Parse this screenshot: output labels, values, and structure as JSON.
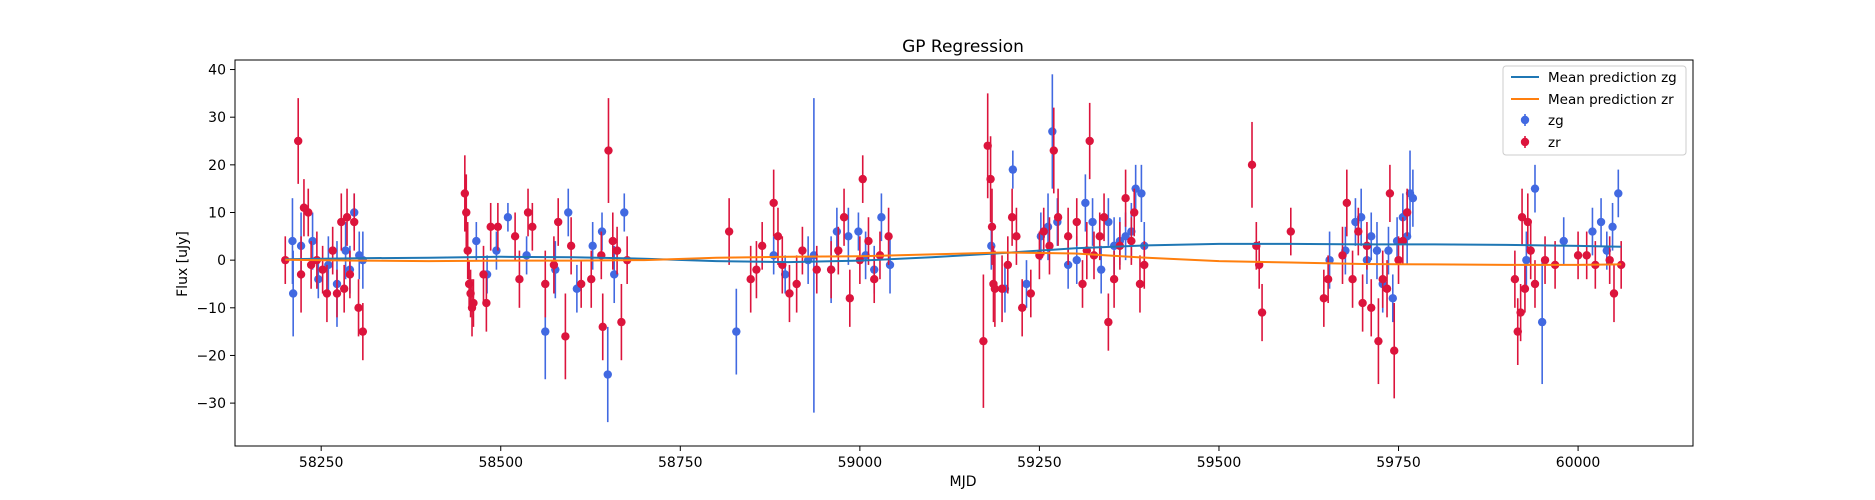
{
  "chart_data": {
    "type": "scatter",
    "title": "GP Regression",
    "xlabel": "MJD",
    "ylabel": "Flux [uJy]",
    "xlim": [
      58130,
      60160
    ],
    "ylim": [
      -39,
      42
    ],
    "xticks": [
      58250,
      58500,
      58750,
      59000,
      59250,
      59500,
      59750,
      60000
    ],
    "yticks": [
      -30,
      -20,
      -10,
      0,
      10,
      20,
      30,
      40
    ],
    "grid": false,
    "legend_position": "top-right",
    "lines": [
      {
        "name": "Mean prediction zg",
        "color": "#1f77b4",
        "points": [
          [
            58200,
            0.2
          ],
          [
            58300,
            0.4
          ],
          [
            58400,
            0.5
          ],
          [
            58500,
            0.7
          ],
          [
            58600,
            0.6
          ],
          [
            58700,
            0.3
          ],
          [
            58800,
            -0.2
          ],
          [
            58900,
            -0.4
          ],
          [
            59000,
            -0.1
          ],
          [
            59100,
            0.6
          ],
          [
            59200,
            1.5
          ],
          [
            59300,
            2.5
          ],
          [
            59400,
            3.1
          ],
          [
            59500,
            3.4
          ],
          [
            59600,
            3.4
          ],
          [
            59700,
            3.3
          ],
          [
            59800,
            3.3
          ],
          [
            59900,
            3.2
          ],
          [
            60000,
            3.0
          ],
          [
            60060,
            2.8
          ]
        ]
      },
      {
        "name": "Mean prediction zr",
        "color": "#ff7f0e",
        "points": [
          [
            58200,
            0.1
          ],
          [
            58300,
            -0.1
          ],
          [
            58400,
            -0.2
          ],
          [
            58500,
            -0.1
          ],
          [
            58600,
            -0.1
          ],
          [
            58700,
            0.0
          ],
          [
            58800,
            0.5
          ],
          [
            58900,
            0.7
          ],
          [
            59000,
            0.8
          ],
          [
            59100,
            1.2
          ],
          [
            59200,
            1.6
          ],
          [
            59300,
            1.4
          ],
          [
            59400,
            0.5
          ],
          [
            59500,
            -0.2
          ],
          [
            59600,
            -0.5
          ],
          [
            59700,
            -0.8
          ],
          [
            59800,
            -0.9
          ],
          [
            59900,
            -1.0
          ],
          [
            60000,
            -1.0
          ],
          [
            60060,
            -0.9
          ]
        ]
      }
    ],
    "series": [
      {
        "name": "zg",
        "color": "#4169e1",
        "points": [
          [
            58210,
            4,
            9
          ],
          [
            58211,
            -7,
            9
          ],
          [
            58222,
            3,
            7
          ],
          [
            58238,
            4,
            6
          ],
          [
            58246,
            -4,
            4
          ],
          [
            58260,
            -1,
            6
          ],
          [
            58272,
            -5,
            9
          ],
          [
            58284,
            2,
            6
          ],
          [
            58290,
            -2,
            5
          ],
          [
            58296,
            10,
            4
          ],
          [
            58303,
            1,
            5
          ],
          [
            58308,
            0,
            6
          ],
          [
            58466,
            4,
            4
          ],
          [
            58481,
            -3,
            4
          ],
          [
            58494,
            2,
            4
          ],
          [
            58510,
            9,
            3
          ],
          [
            58536,
            1,
            4
          ],
          [
            58562,
            -15,
            10
          ],
          [
            58576,
            -2,
            6
          ],
          [
            58594,
            10,
            5
          ],
          [
            58606,
            -6,
            5
          ],
          [
            58628,
            3,
            5
          ],
          [
            58641,
            6,
            4
          ],
          [
            58649,
            -24,
            10
          ],
          [
            58658,
            -3,
            6
          ],
          [
            58672,
            10,
            4
          ],
          [
            58828,
            -15,
            9
          ],
          [
            58880,
            1,
            4
          ],
          [
            58896,
            -3,
            4
          ],
          [
            58928,
            0,
            5
          ],
          [
            58936,
            1,
            33
          ],
          [
            58960,
            -2,
            7
          ],
          [
            58968,
            6,
            5
          ],
          [
            58984,
            5,
            6
          ],
          [
            58998,
            6,
            4
          ],
          [
            59008,
            1,
            5
          ],
          [
            59020,
            -2,
            5
          ],
          [
            59030,
            9,
            5
          ],
          [
            59042,
            -1,
            6
          ],
          [
            59183,
            3,
            5
          ],
          [
            59202,
            -6,
            5
          ],
          [
            59213,
            19,
            4
          ],
          [
            59232,
            -5,
            5
          ],
          [
            59252,
            5,
            5
          ],
          [
            59262,
            7,
            7
          ],
          [
            59268,
            27,
            12
          ],
          [
            59275,
            8,
            5
          ],
          [
            59290,
            -1,
            5
          ],
          [
            59302,
            0,
            5
          ],
          [
            59314,
            12,
            6
          ],
          [
            59324,
            8,
            5
          ],
          [
            59336,
            -2,
            5
          ],
          [
            59346,
            8,
            5
          ],
          [
            59354,
            3,
            6
          ],
          [
            59362,
            4,
            5
          ],
          [
            59370,
            5,
            5
          ],
          [
            59378,
            6,
            6
          ],
          [
            59384,
            15,
            5
          ],
          [
            59392,
            14,
            6
          ],
          [
            59396,
            3,
            5
          ],
          [
            59654,
            0,
            6
          ],
          [
            59676,
            2,
            5
          ],
          [
            59690,
            8,
            5
          ],
          [
            59698,
            9,
            6
          ],
          [
            59706,
            0,
            5
          ],
          [
            59712,
            5,
            5
          ],
          [
            59720,
            2,
            6
          ],
          [
            59728,
            -5,
            6
          ],
          [
            59736,
            2,
            5
          ],
          [
            59742,
            -8,
            5
          ],
          [
            59748,
            4,
            5
          ],
          [
            59756,
            9,
            5
          ],
          [
            59762,
            5,
            6
          ],
          [
            59766,
            14,
            9
          ],
          [
            59770,
            13,
            6
          ],
          [
            59928,
            0,
            6
          ],
          [
            59940,
            15,
            5
          ],
          [
            59950,
            -13,
            13
          ],
          [
            59980,
            4,
            5
          ],
          [
            60020,
            6,
            5
          ],
          [
            60032,
            8,
            5
          ],
          [
            60040,
            2,
            4
          ],
          [
            60048,
            7,
            5
          ],
          [
            60056,
            14,
            5
          ]
        ]
      },
      {
        "name": "zr",
        "color": "#dc143c",
        "points": [
          [
            58200,
            0,
            5
          ],
          [
            58218,
            25,
            9
          ],
          [
            58222,
            -3,
            8
          ],
          [
            58226,
            11,
            6
          ],
          [
            58232,
            10,
            5
          ],
          [
            58236,
            -1,
            5
          ],
          [
            58244,
            0,
            6
          ],
          [
            58252,
            -2,
            5
          ],
          [
            58258,
            -7,
            6
          ],
          [
            58266,
            2,
            5
          ],
          [
            58272,
            -7,
            5
          ],
          [
            58278,
            8,
            6
          ],
          [
            58282,
            -6,
            5
          ],
          [
            58286,
            9,
            6
          ],
          [
            58290,
            -3,
            5
          ],
          [
            58296,
            8,
            6
          ],
          [
            58302,
            -10,
            6
          ],
          [
            58308,
            -15,
            6
          ],
          [
            58450,
            14,
            8
          ],
          [
            58452,
            10,
            8
          ],
          [
            58454,
            2,
            6
          ],
          [
            58456,
            -5,
            5
          ],
          [
            58458,
            -7,
            5
          ],
          [
            58460,
            -10,
            6
          ],
          [
            58462,
            -9,
            5
          ],
          [
            58476,
            -3,
            6
          ],
          [
            58480,
            -9,
            6
          ],
          [
            58486,
            7,
            5
          ],
          [
            58496,
            7,
            5
          ],
          [
            58520,
            5,
            5
          ],
          [
            58526,
            -4,
            6
          ],
          [
            58538,
            10,
            5
          ],
          [
            58544,
            7,
            5
          ],
          [
            58562,
            -5,
            7
          ],
          [
            58574,
            -1,
            6
          ],
          [
            58580,
            8,
            5
          ],
          [
            58590,
            -16,
            9
          ],
          [
            58598,
            3,
            6
          ],
          [
            58612,
            -5,
            5
          ],
          [
            58626,
            -4,
            6
          ],
          [
            58640,
            1,
            5
          ],
          [
            58642,
            -14,
            7
          ],
          [
            58650,
            23,
            11
          ],
          [
            58656,
            4,
            6
          ],
          [
            58662,
            2,
            5
          ],
          [
            58668,
            -13,
            8
          ],
          [
            58676,
            0,
            5
          ],
          [
            58818,
            6,
            7
          ],
          [
            58848,
            -4,
            7
          ],
          [
            58856,
            -2,
            6
          ],
          [
            58864,
            3,
            5
          ],
          [
            58880,
            12,
            7
          ],
          [
            58886,
            5,
            6
          ],
          [
            58892,
            -1,
            6
          ],
          [
            58902,
            -7,
            6
          ],
          [
            58912,
            -5,
            6
          ],
          [
            58920,
            2,
            5
          ],
          [
            58940,
            -2,
            5
          ],
          [
            58960,
            -2,
            6
          ],
          [
            58970,
            2,
            5
          ],
          [
            58978,
            9,
            6
          ],
          [
            58986,
            -8,
            6
          ],
          [
            59000,
            0,
            5
          ],
          [
            59004,
            17,
            5
          ],
          [
            59012,
            4,
            5
          ],
          [
            59020,
            -4,
            5
          ],
          [
            59028,
            1,
            5
          ],
          [
            59040,
            5,
            6
          ],
          [
            59172,
            -17,
            14
          ],
          [
            59178,
            24,
            11
          ],
          [
            59182,
            17,
            9
          ],
          [
            59184,
            7,
            8
          ],
          [
            59186,
            -5,
            8
          ],
          [
            59188,
            -6,
            8
          ],
          [
            59198,
            -6,
            7
          ],
          [
            59206,
            -1,
            6
          ],
          [
            59212,
            9,
            6
          ],
          [
            59218,
            5,
            6
          ],
          [
            59226,
            -10,
            6
          ],
          [
            59238,
            -7,
            5
          ],
          [
            59250,
            1,
            5
          ],
          [
            59256,
            6,
            5
          ],
          [
            59264,
            3,
            6
          ],
          [
            59270,
            23,
            9
          ],
          [
            59276,
            9,
            6
          ],
          [
            59290,
            5,
            6
          ],
          [
            59302,
            8,
            5
          ],
          [
            59310,
            -5,
            5
          ],
          [
            59316,
            2,
            6
          ],
          [
            59320,
            25,
            8
          ],
          [
            59326,
            1,
            5
          ],
          [
            59334,
            5,
            5
          ],
          [
            59340,
            9,
            5
          ],
          [
            59346,
            -13,
            6
          ],
          [
            59354,
            -4,
            6
          ],
          [
            59362,
            3,
            5
          ],
          [
            59370,
            13,
            6
          ],
          [
            59378,
            4,
            5
          ],
          [
            59382,
            10,
            5
          ],
          [
            59390,
            -5,
            6
          ],
          [
            59396,
            -1,
            5
          ],
          [
            59546,
            20,
            9
          ],
          [
            59552,
            3,
            5
          ],
          [
            59556,
            -1,
            5
          ],
          [
            59560,
            -11,
            6
          ],
          [
            59600,
            6,
            5
          ],
          [
            59646,
            -8,
            6
          ],
          [
            59652,
            -4,
            5
          ],
          [
            59672,
            1,
            6
          ],
          [
            59678,
            12,
            7
          ],
          [
            59686,
            -4,
            6
          ],
          [
            59694,
            6,
            5
          ],
          [
            59700,
            -9,
            6
          ],
          [
            59706,
            3,
            5
          ],
          [
            59712,
            -10,
            6
          ],
          [
            59722,
            -17,
            9
          ],
          [
            59728,
            -4,
            6
          ],
          [
            59734,
            -6,
            6
          ],
          [
            59738,
            14,
            6
          ],
          [
            59744,
            -19,
            10
          ],
          [
            59750,
            0,
            5
          ],
          [
            59756,
            4,
            5
          ],
          [
            59762,
            10,
            5
          ],
          [
            59912,
            -4,
            6
          ],
          [
            59916,
            -15,
            7
          ],
          [
            59920,
            -11,
            6
          ],
          [
            59922,
            9,
            6
          ],
          [
            59926,
            -6,
            5
          ],
          [
            59930,
            8,
            6
          ],
          [
            59934,
            2,
            6
          ],
          [
            59940,
            -5,
            5
          ],
          [
            59954,
            0,
            5
          ],
          [
            59968,
            -1,
            5
          ],
          [
            60000,
            1,
            5
          ],
          [
            60012,
            1,
            5
          ],
          [
            60024,
            -1,
            5
          ],
          [
            60044,
            0,
            5
          ],
          [
            60050,
            -7,
            6
          ],
          [
            60060,
            -1,
            5
          ]
        ]
      }
    ]
  }
}
